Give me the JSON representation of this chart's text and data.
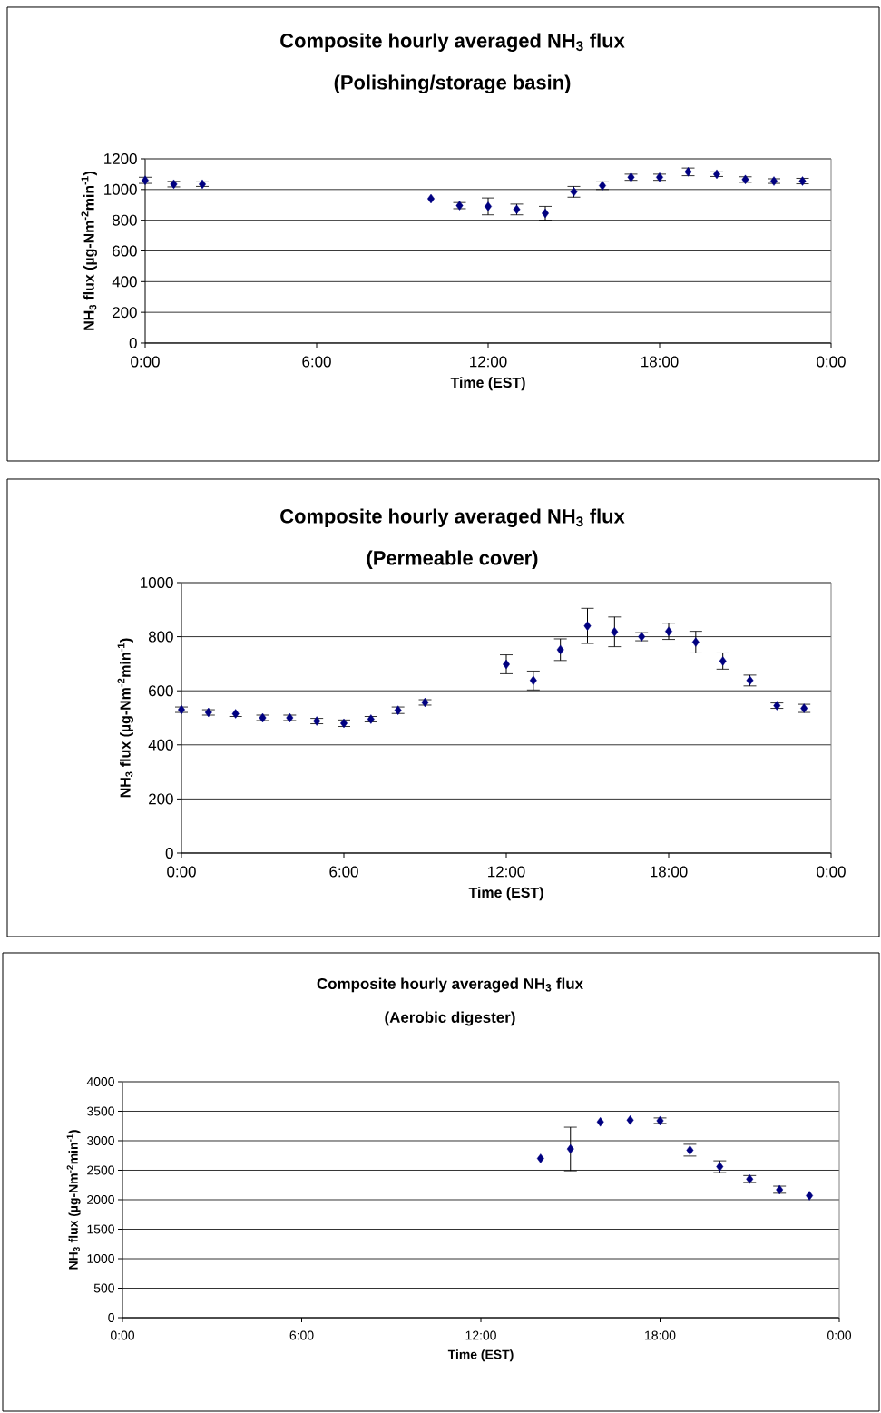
{
  "chart_data": [
    {
      "type": "scatter",
      "title": "Composite hourly averaged NH$_{3}$ flux",
      "subtitle": "(Polishing/storage basin)",
      "xlabel": "Time (EST)",
      "ylabel": "NH$_{3}$ flux (µg-Nm$^{-2}$min$^{-1}$)",
      "color": "#000080",
      "marker": "diamond",
      "grid": "y",
      "x": [
        0,
        1,
        2,
        10,
        11,
        12,
        13,
        14,
        15,
        16,
        17,
        18,
        19,
        20,
        21,
        22,
        23
      ],
      "values": [
        1060,
        1035,
        1035,
        940,
        895,
        890,
        870,
        845,
        985,
        1025,
        1080,
        1080,
        1115,
        1100,
        1065,
        1055,
        1055
      ],
      "errors": [
        20,
        18,
        15,
        null,
        20,
        55,
        35,
        45,
        35,
        25,
        20,
        20,
        25,
        15,
        18,
        15,
        18
      ],
      "xlim": [
        0,
        24
      ],
      "ylim": [
        0,
        1200
      ],
      "xticks": [
        {
          "value": 0,
          "label": "0:00"
        },
        {
          "value": 6,
          "label": "6:00"
        },
        {
          "value": 12,
          "label": "12:00"
        },
        {
          "value": 18,
          "label": "18:00"
        },
        {
          "value": 24,
          "label": "0:00"
        }
      ],
      "yticks": [
        0,
        200,
        400,
        600,
        800,
        1000,
        1200
      ]
    },
    {
      "type": "scatter",
      "title": "Composite hourly averaged NH$_{3}$ flux",
      "subtitle": "(Permeable cover)",
      "xlabel": "Time (EST)",
      "ylabel": "NH$_{3}$ flux (µg-Nm$^{-2}$min$^{-1}$)",
      "color": "#000080",
      "marker": "diamond",
      "grid": "y",
      "x": [
        0,
        1,
        2,
        3,
        4,
        5,
        6,
        7,
        8,
        9,
        12,
        13,
        14,
        15,
        16,
        17,
        18,
        19,
        20,
        21,
        22,
        23
      ],
      "values": [
        530,
        520,
        515,
        500,
        500,
        488,
        480,
        495,
        528,
        557,
        698,
        638,
        752,
        840,
        818,
        800,
        820,
        780,
        710,
        638,
        545,
        535
      ],
      "errors": [
        10,
        10,
        10,
        10,
        10,
        10,
        12,
        10,
        12,
        10,
        35,
        35,
        40,
        65,
        55,
        15,
        30,
        40,
        30,
        20,
        10,
        15
      ],
      "xlim": [
        0,
        24
      ],
      "ylim": [
        0,
        1000
      ],
      "xticks": [
        {
          "value": 0,
          "label": "0:00"
        },
        {
          "value": 6,
          "label": "6:00"
        },
        {
          "value": 12,
          "label": "12:00"
        },
        {
          "value": 18,
          "label": "18:00"
        },
        {
          "value": 24,
          "label": "0:00"
        }
      ],
      "yticks": [
        0,
        200,
        400,
        600,
        800,
        1000
      ]
    },
    {
      "type": "scatter",
      "title": "Composite hourly averaged NH$_{3}$ flux",
      "subtitle": "(Aerobic digester)",
      "xlabel": "Time (EST)",
      "ylabel": "NH$_{3}$ flux (µg-Nm$^{-2}$min$^{-1}$)",
      "color": "#000080",
      "marker": "diamond",
      "grid": "y",
      "x": [
        14,
        15,
        16,
        17,
        18,
        19,
        20,
        21,
        22,
        23
      ],
      "values": [
        2700,
        2860,
        3320,
        3350,
        3340,
        2840,
        2560,
        2350,
        2170,
        2070
      ],
      "errors": [
        null,
        370,
        null,
        null,
        46,
        100,
        100,
        60,
        60,
        null
      ],
      "xlim": [
        0,
        24
      ],
      "ylim": [
        0,
        4000
      ],
      "xticks": [
        {
          "value": 0,
          "label": "0:00"
        },
        {
          "value": 6,
          "label": "6:00"
        },
        {
          "value": 12,
          "label": "12:00"
        },
        {
          "value": 18,
          "label": "18:00"
        },
        {
          "value": 24,
          "label": "0:00"
        }
      ],
      "yticks": [
        0,
        500,
        1000,
        1500,
        2000,
        2500,
        3000,
        3500,
        4000
      ]
    }
  ]
}
